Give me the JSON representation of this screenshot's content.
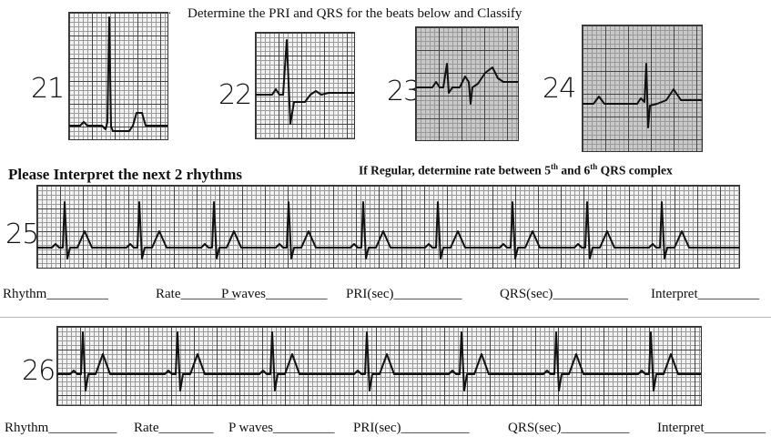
{
  "header": {
    "instruction": "Determine the PRI and QRS for the beats below and Classify",
    "section_title": "Please Interpret the next 2 rhythms",
    "regular_note_prefix": "If Regular, determine rate between 5",
    "regular_note_sup1": "th",
    "regular_note_mid": " and 6",
    "regular_note_sup2": "th",
    "regular_note_suffix": " QRS complex"
  },
  "strips": [
    {
      "number": "21"
    },
    {
      "number": "22"
    },
    {
      "number": "23"
    },
    {
      "number": "24"
    },
    {
      "number": "25"
    },
    {
      "number": "26"
    }
  ],
  "answer_rows": [
    {
      "rhythm": "Rhythm_________",
      "rate": "Rate________",
      "p_waves": "P waves_________",
      "pri": "PRI(sec)__________",
      "qrs": "QRS(sec)___________",
      "interpret": "Interpret_________"
    },
    {
      "rhythm": "Rhythm__________",
      "rate": "Rate________",
      "p_waves": "P waves_________",
      "pri": "PRI(sec)__________",
      "qrs": "QRS(sec)__________",
      "interpret": "Interpret_________"
    }
  ],
  "colors": {
    "ink": "#111111",
    "grid_major": "#444444",
    "grid_minor": "#9a9a9a"
  }
}
